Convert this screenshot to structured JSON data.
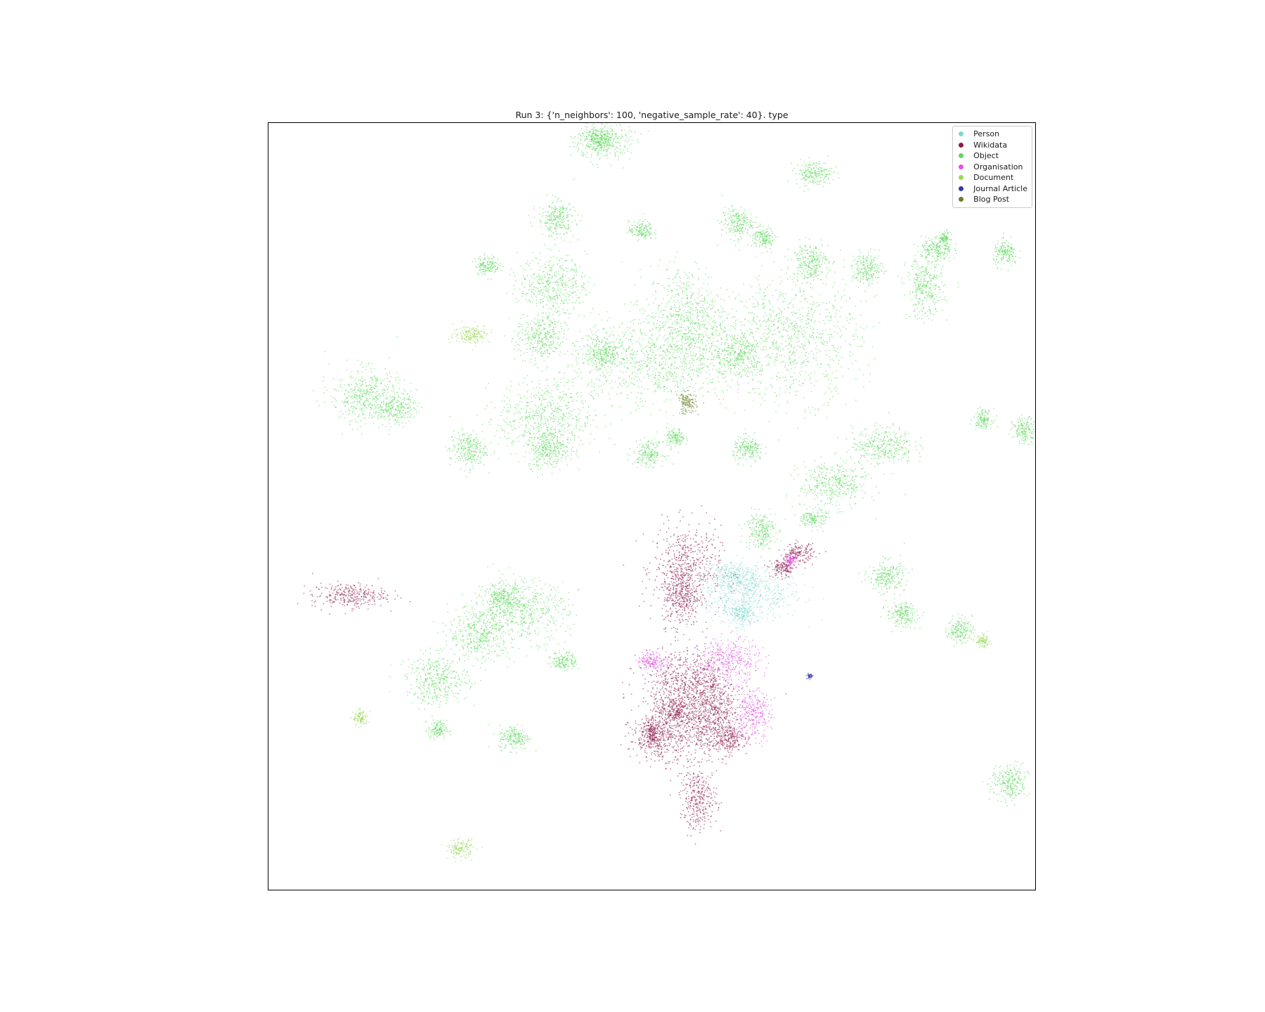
{
  "chart_data": {
    "type": "scatter",
    "title": "Run 3: {'n_neighbors': 100, 'negative_sample_rate': 40}. type",
    "xlabel": "",
    "ylabel": "",
    "axes_ticks": "hidden",
    "grid": false,
    "legend_position": "top-right",
    "point_size": "tiny",
    "series": [
      {
        "name": "Person",
        "color": "#7fd8cf",
        "clusters": [
          [
            0.625,
            0.385,
            0.035,
            0.016
          ],
          [
            0.605,
            0.41,
            0.02,
            0.01
          ],
          [
            0.615,
            0.36,
            0.01,
            0.008
          ]
        ]
      },
      {
        "name": "Wikidata",
        "color": "#8b1a4a",
        "clusters": [
          [
            0.545,
            0.42,
            0.022,
            0.028
          ],
          [
            0.537,
            0.385,
            0.012,
            0.02
          ],
          [
            0.105,
            0.385,
            0.024,
            0.008
          ],
          [
            0.555,
            0.23,
            0.028,
            0.03
          ],
          [
            0.545,
            0.275,
            0.03,
            0.02
          ],
          [
            0.51,
            0.2,
            0.02,
            0.014
          ],
          [
            0.58,
            0.23,
            0.015,
            0.025
          ],
          [
            0.5,
            0.205,
            0.006,
            0.01
          ],
          [
            0.53,
            0.235,
            0.012,
            0.01
          ],
          [
            0.69,
            0.44,
            0.01,
            0.006
          ],
          [
            0.67,
            0.42,
            0.008,
            0.006
          ],
          [
            0.56,
            0.12,
            0.012,
            0.02
          ],
          [
            0.6,
            0.2,
            0.01,
            0.008
          ]
        ]
      },
      {
        "name": "Object",
        "color": "#5ed85e",
        "clusters": [
          [
            0.435,
            0.975,
            0.018,
            0.012
          ],
          [
            0.375,
            0.875,
            0.012,
            0.012
          ],
          [
            0.37,
            0.79,
            0.022,
            0.018
          ],
          [
            0.355,
            0.72,
            0.016,
            0.016
          ],
          [
            0.545,
            0.745,
            0.025,
            0.035
          ],
          [
            0.5,
            0.69,
            0.055,
            0.03
          ],
          [
            0.435,
            0.7,
            0.012,
            0.012
          ],
          [
            0.68,
            0.72,
            0.045,
            0.04
          ],
          [
            0.61,
            0.7,
            0.015,
            0.015
          ],
          [
            0.855,
            0.785,
            0.012,
            0.02
          ],
          [
            0.78,
            0.81,
            0.01,
            0.01
          ],
          [
            0.705,
            0.82,
            0.012,
            0.012
          ],
          [
            0.645,
            0.85,
            0.007,
            0.007
          ],
          [
            0.125,
            0.645,
            0.022,
            0.018
          ],
          [
            0.165,
            0.63,
            0.014,
            0.01
          ],
          [
            0.36,
            0.615,
            0.03,
            0.025
          ],
          [
            0.365,
            0.575,
            0.014,
            0.012
          ],
          [
            0.26,
            0.575,
            0.012,
            0.012
          ],
          [
            0.8,
            0.58,
            0.02,
            0.012
          ],
          [
            0.53,
            0.59,
            0.006,
            0.006
          ],
          [
            0.625,
            0.575,
            0.01,
            0.008
          ],
          [
            0.495,
            0.57,
            0.01,
            0.008
          ],
          [
            0.735,
            0.53,
            0.022,
            0.015
          ],
          [
            0.985,
            0.6,
            0.008,
            0.008
          ],
          [
            0.33,
            0.365,
            0.03,
            0.02
          ],
          [
            0.275,
            0.335,
            0.02,
            0.018
          ],
          [
            0.305,
            0.38,
            0.012,
            0.01
          ],
          [
            0.22,
            0.275,
            0.02,
            0.016
          ],
          [
            0.64,
            0.47,
            0.01,
            0.012
          ],
          [
            0.71,
            0.485,
            0.008,
            0.006
          ],
          [
            0.805,
            0.41,
            0.012,
            0.01
          ],
          [
            0.825,
            0.36,
            0.01,
            0.008
          ],
          [
            0.9,
            0.34,
            0.008,
            0.008
          ],
          [
            0.385,
            0.3,
            0.008,
            0.006
          ],
          [
            0.965,
            0.14,
            0.012,
            0.012
          ],
          [
            0.22,
            0.21,
            0.006,
            0.006
          ],
          [
            0.32,
            0.2,
            0.01,
            0.008
          ],
          [
            0.71,
            0.935,
            0.012,
            0.008
          ],
          [
            0.61,
            0.87,
            0.01,
            0.01
          ],
          [
            0.485,
            0.86,
            0.008,
            0.006
          ],
          [
            0.285,
            0.815,
            0.008,
            0.006
          ],
          [
            0.87,
            0.835,
            0.01,
            0.008
          ],
          [
            0.96,
            0.83,
            0.008,
            0.008
          ],
          [
            0.93,
            0.615,
            0.006,
            0.006
          ],
          [
            0.88,
            0.85,
            0.004,
            0.004
          ],
          [
            0.43,
            0.98,
            0.01,
            0.008
          ]
        ]
      },
      {
        "name": "Organisation",
        "color": "#e650e6",
        "clusters": [
          [
            0.6,
            0.3,
            0.02,
            0.014
          ],
          [
            0.5,
            0.3,
            0.01,
            0.006
          ],
          [
            0.63,
            0.23,
            0.012,
            0.016
          ],
          [
            0.68,
            0.43,
            0.004,
            0.004
          ]
        ]
      },
      {
        "name": "Document",
        "color": "#9bd85a",
        "clusters": [
          [
            0.265,
            0.725,
            0.012,
            0.006
          ],
          [
            0.12,
            0.225,
            0.005,
            0.005
          ],
          [
            0.25,
            0.055,
            0.008,
            0.006
          ],
          [
            0.93,
            0.325,
            0.005,
            0.004
          ]
        ]
      },
      {
        "name": "Journal Article",
        "color": "#3737a8",
        "clusters": [
          [
            0.705,
            0.28,
            0.002,
            0.002
          ]
        ]
      },
      {
        "name": "Blog Post",
        "color": "#6b7d2a",
        "clusters": [
          [
            0.545,
            0.635,
            0.006,
            0.007
          ]
        ]
      }
    ]
  }
}
